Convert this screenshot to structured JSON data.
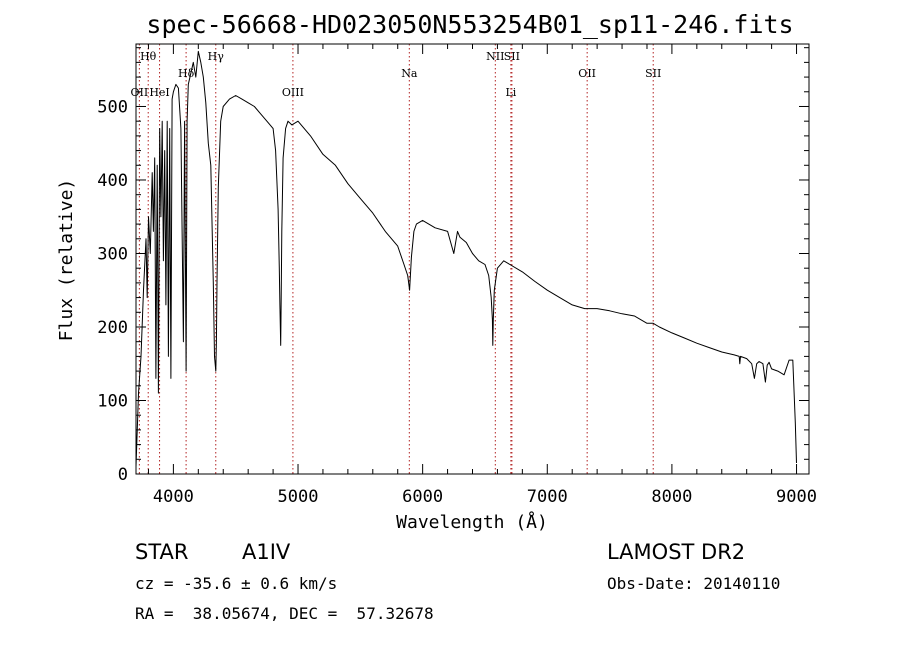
{
  "chart_data": {
    "type": "line",
    "title": "spec-56668-HD023050N553254B01_sp11-246.fits",
    "xlabel": "Wavelength (Å)",
    "ylabel": "Flux (relative)",
    "xlim": [
      3700,
      9100
    ],
    "ylim": [
      0,
      585
    ],
    "xticks": [
      4000,
      5000,
      6000,
      7000,
      8000,
      9000
    ],
    "yticks": [
      0,
      100,
      200,
      300,
      400,
      500
    ],
    "grid": false,
    "series": [
      {
        "color": "#000000",
        "x": [
          3700,
          3720,
          3740,
          3760,
          3780,
          3790,
          3800,
          3815,
          3830,
          3840,
          3850,
          3860,
          3870,
          3880,
          3890,
          3900,
          3910,
          3920,
          3930,
          3940,
          3950,
          3960,
          3970,
          3980,
          3990,
          4000,
          4020,
          4040,
          4060,
          4080,
          4090,
          4102,
          4110,
          4120,
          4140,
          4160,
          4180,
          4200,
          4220,
          4240,
          4260,
          4280,
          4300,
          4320,
          4330,
          4340,
          4345,
          4350,
          4360,
          4380,
          4400,
          4450,
          4500,
          4550,
          4600,
          4650,
          4700,
          4750,
          4800,
          4820,
          4840,
          4850,
          4855,
          4861,
          4865,
          4870,
          4880,
          4900,
          4920,
          4950,
          5000,
          5100,
          5200,
          5300,
          5400,
          5500,
          5600,
          5700,
          5800,
          5850,
          5880,
          5895,
          5910,
          5930,
          5950,
          6000,
          6100,
          6200,
          6250,
          6280,
          6300,
          6350,
          6400,
          6450,
          6500,
          6530,
          6550,
          6560,
          6563,
          6567,
          6575,
          6600,
          6650,
          6700,
          6800,
          6900,
          7000,
          7100,
          7200,
          7300,
          7400,
          7500,
          7600,
          7700,
          7800,
          7850,
          7900,
          8000,
          8100,
          8200,
          8300,
          8400,
          8500,
          8540,
          8545,
          8550,
          8600,
          8640,
          8662,
          8680,
          8700,
          8730,
          8750,
          8765,
          8780,
          8800,
          8850,
          8900,
          8940,
          8970,
          8990,
          9000
        ],
        "y": [
          10,
          110,
          160,
          250,
          320,
          240,
          350,
          300,
          410,
          330,
          430,
          130,
          420,
          110,
          470,
          350,
          480,
          290,
          440,
          230,
          480,
          160,
          470,
          130,
          510,
          520,
          530,
          525,
          470,
          180,
          480,
          140,
          480,
          530,
          545,
          560,
          540,
          575,
          560,
          540,
          505,
          450,
          420,
          260,
          160,
          140,
          180,
          260,
          390,
          480,
          500,
          510,
          515,
          510,
          505,
          500,
          490,
          480,
          470,
          440,
          360,
          280,
          230,
          175,
          240,
          330,
          430,
          470,
          480,
          475,
          480,
          460,
          435,
          420,
          395,
          375,
          355,
          330,
          310,
          285,
          270,
          250,
          295,
          330,
          340,
          345,
          335,
          330,
          300,
          330,
          322,
          315,
          300,
          290,
          285,
          270,
          240,
          210,
          175,
          210,
          250,
          280,
          290,
          285,
          275,
          262,
          250,
          240,
          230,
          225,
          225,
          222,
          218,
          215,
          205,
          205,
          200,
          192,
          185,
          178,
          172,
          166,
          162,
          160,
          150,
          160,
          157,
          150,
          130,
          150,
          153,
          150,
          125,
          148,
          152,
          143,
          140,
          135,
          155,
          155,
          70,
          15
        ]
      }
    ],
    "line_markers": [
      {
        "label": "Hθ",
        "wavelength": 3798,
        "row": 0
      },
      {
        "label": "OII",
        "wavelength": 3727,
        "row": 2
      },
      {
        "label": "HeI",
        "wavelength": 3889,
        "row": 2
      },
      {
        "label": "Hδ",
        "wavelength": 4102,
        "row": 1
      },
      {
        "label": "Hγ",
        "wavelength": 4340,
        "row": 0
      },
      {
        "label": "OIII",
        "wavelength": 4959,
        "row": 2
      },
      {
        "label": "Na",
        "wavelength": 5893,
        "row": 1
      },
      {
        "label": "NII",
        "wavelength": 6583,
        "row": 0
      },
      {
        "label": "SII",
        "wavelength": 6716,
        "row": 0
      },
      {
        "label": "Li",
        "wavelength": 6708,
        "row": 2
      },
      {
        "label": "OII",
        "wavelength": 7320,
        "row": 1
      },
      {
        "label": "SII",
        "wavelength": 7850,
        "row": 1
      }
    ]
  },
  "info": {
    "class_label": "STAR",
    "subclass": "A1IV",
    "survey": "LAMOST DR2",
    "redshift_text": "cz = -35.6 ± 0.6 km/s",
    "obs_date_text": "Obs-Date: 20140110",
    "coords_text": "RA =  38.05674, DEC =  57.32678"
  }
}
